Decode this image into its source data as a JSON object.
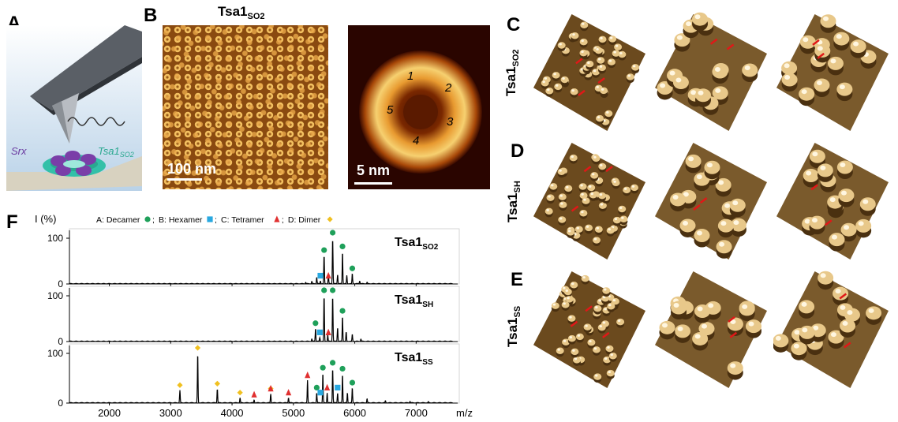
{
  "panels": {
    "a": {
      "label": "A",
      "srx": "Srx",
      "tsa_main": "Tsa1",
      "tsa_sub": "SO2"
    },
    "b": {
      "label": "B",
      "title_main": "Tsa1",
      "title_sub": "SO2",
      "scale_left": "100 nm",
      "scale_right": "5 nm",
      "subunits": [
        "1",
        "2",
        "3",
        "4",
        "5"
      ]
    },
    "c": {
      "label": "C",
      "row_main": "Tsa1",
      "row_sub": "SO2"
    },
    "d": {
      "label": "D",
      "row_main": "Tsa1",
      "row_sub": "SH"
    },
    "e": {
      "label": "E",
      "row_main": "Tsa1",
      "row_sub": "SS"
    },
    "f": {
      "label": "F"
    }
  },
  "chart_data": {
    "type": "line",
    "ylabel": "I (%)",
    "xlabel": "m/z",
    "xlim": [
      1350,
      7600
    ],
    "ylim": [
      0,
      100
    ],
    "x_ticks": [
      2000,
      3000,
      4000,
      5000,
      6000,
      7000
    ],
    "y_ticks": [
      0,
      100
    ],
    "legend": [
      {
        "key": "A",
        "text": "A: Decamer",
        "marker": "circle",
        "color": "#1fa05a"
      },
      {
        "key": "B",
        "text": "B: Hexamer",
        "marker": "square",
        "color": "#29a8e0"
      },
      {
        "key": "C",
        "text": "C: Tetramer",
        "marker": "triangle",
        "color": "#e03030"
      },
      {
        "key": "D",
        "text": "D: Dimer",
        "marker": "diamond",
        "color": "#f0c020"
      }
    ],
    "series": [
      {
        "name_main": "Tsa1",
        "name_sub": "SO2",
        "peaks": [
          [
            5200,
            3
          ],
          [
            5300,
            5
          ],
          [
            5380,
            14
          ],
          [
            5440,
            6
          ],
          [
            5500,
            62
          ],
          [
            5570,
            18
          ],
          [
            5640,
            100
          ],
          [
            5720,
            20
          ],
          [
            5800,
            70
          ],
          [
            5870,
            18
          ],
          [
            5960,
            22
          ],
          [
            6080,
            6
          ],
          [
            6200,
            3
          ]
        ],
        "markers": [
          [
            5500,
            62,
            "A"
          ],
          [
            5640,
            100,
            "A"
          ],
          [
            5800,
            70,
            "A"
          ],
          [
            5960,
            22,
            "A"
          ],
          [
            5440,
            6,
            "B"
          ],
          [
            5570,
            6,
            "C"
          ]
        ]
      },
      {
        "name_main": "Tsa1",
        "name_sub": "SH",
        "peaks": [
          [
            5300,
            5
          ],
          [
            5360,
            28
          ],
          [
            5430,
            8
          ],
          [
            5500,
            100
          ],
          [
            5560,
            14
          ],
          [
            5640,
            100
          ],
          [
            5720,
            30
          ],
          [
            5800,
            55
          ],
          [
            5860,
            20
          ],
          [
            5960,
            15
          ],
          [
            6100,
            5
          ]
        ],
        "markers": [
          [
            5360,
            28,
            "A"
          ],
          [
            5500,
            100,
            "A"
          ],
          [
            5640,
            100,
            "A"
          ],
          [
            5800,
            55,
            "A"
          ],
          [
            5430,
            8,
            "B"
          ],
          [
            5570,
            8,
            "C"
          ]
        ]
      },
      {
        "name_main": "Tsa1",
        "name_sub": "SS",
        "peaks": [
          [
            3150,
            25
          ],
          [
            3440,
            100
          ],
          [
            3760,
            28
          ],
          [
            4130,
            10
          ],
          [
            4360,
            6
          ],
          [
            4630,
            18
          ],
          [
            4920,
            10
          ],
          [
            5230,
            45
          ],
          [
            5380,
            20
          ],
          [
            5480,
            60
          ],
          [
            5550,
            20
          ],
          [
            5640,
            70
          ],
          [
            5720,
            20
          ],
          [
            5800,
            58
          ],
          [
            5880,
            20
          ],
          [
            5960,
            30
          ],
          [
            6200,
            8
          ],
          [
            6500,
            4
          ],
          [
            6900,
            3
          ],
          [
            7200,
            2
          ]
        ],
        "markers": [
          [
            3150,
            25,
            "D"
          ],
          [
            3440,
            100,
            "D"
          ],
          [
            3760,
            28,
            "D"
          ],
          [
            4130,
            10,
            "D"
          ],
          [
            4630,
            18,
            "D"
          ],
          [
            4360,
            6,
            "C"
          ],
          [
            4630,
            18,
            "C"
          ],
          [
            4920,
            10,
            "C"
          ],
          [
            5230,
            45,
            "C"
          ],
          [
            5480,
            60,
            "A"
          ],
          [
            5640,
            70,
            "A"
          ],
          [
            5800,
            58,
            "A"
          ],
          [
            5960,
            30,
            "A"
          ],
          [
            5380,
            20,
            "A"
          ],
          [
            5440,
            10,
            "B"
          ],
          [
            5720,
            20,
            "B"
          ],
          [
            5550,
            20,
            "C"
          ]
        ]
      }
    ]
  }
}
